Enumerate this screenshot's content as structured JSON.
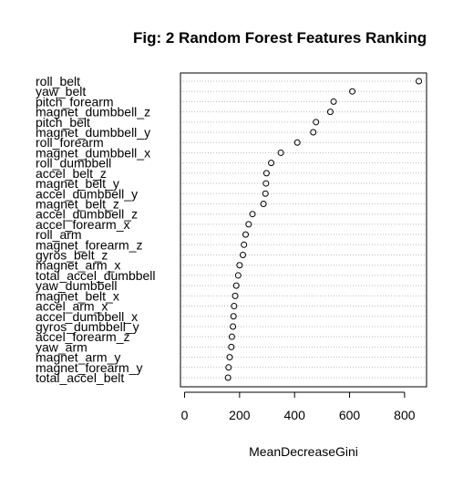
{
  "chart_data": {
    "type": "scatter",
    "style": "dotchart",
    "title": "Fig: 2 Random Forest Features Ranking",
    "xlabel": "MeanDecreaseGini",
    "ylabel": "",
    "xlim": [
      -15,
      880
    ],
    "xticks": [
      0,
      200,
      400,
      600,
      800
    ],
    "grid": "dotted horizontal guide lines per feature",
    "marker": "open circle",
    "categories": [
      "roll_belt",
      "yaw_belt",
      "pitch_forearm",
      "magnet_dumbbell_z",
      "pitch_belt",
      "magnet_dumbbell_y",
      "roll_forearm",
      "magnet_dumbbell_x",
      "roll_dumbbell",
      "accel_belt_z",
      "magnet_belt_y",
      "accel_dumbbell_y",
      "magnet_belt_z",
      "accel_dumbbell_z",
      "accel_forearm_x",
      "roll_arm",
      "magnet_forearm_z",
      "gyros_belt_z",
      "magnet_arm_x",
      "total_accel_dumbbell",
      "yaw_dumbbell",
      "magnet_belt_x",
      "accel_arm_x",
      "accel_dumbbell_x",
      "gyros_dumbbell_y",
      "accel_forearm_z",
      "yaw_arm",
      "magnet_arm_y",
      "magnet_forearm_y",
      "total_accel_belt"
    ],
    "values": [
      852,
      610,
      542,
      530,
      478,
      468,
      410,
      350,
      315,
      298,
      296,
      294,
      287,
      247,
      233,
      222,
      216,
      212,
      200,
      195,
      188,
      184,
      180,
      178,
      176,
      172,
      170,
      164,
      160,
      158
    ]
  }
}
